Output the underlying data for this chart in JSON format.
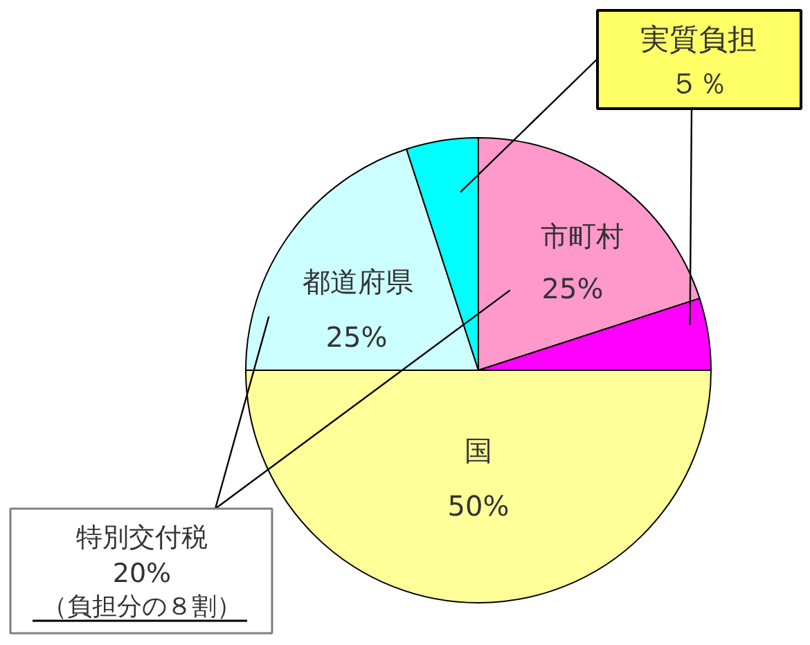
{
  "chart_data": {
    "type": "pie",
    "categories": [
      "市町村",
      null,
      "国",
      "都道府県",
      null
    ],
    "values": [
      20,
      5,
      50,
      20,
      5
    ],
    "colors": [
      "#ff99cc",
      "#ff00ff",
      "#ffff99",
      "#ccffff",
      "#00ffff"
    ],
    "value_labels": [
      null,
      null,
      "50%",
      null,
      null
    ],
    "annotations": [
      "25%",
      "25%",
      "実質負担",
      "５％",
      "特別交付税",
      "20%",
      "（負担分の８割）"
    ]
  }
}
